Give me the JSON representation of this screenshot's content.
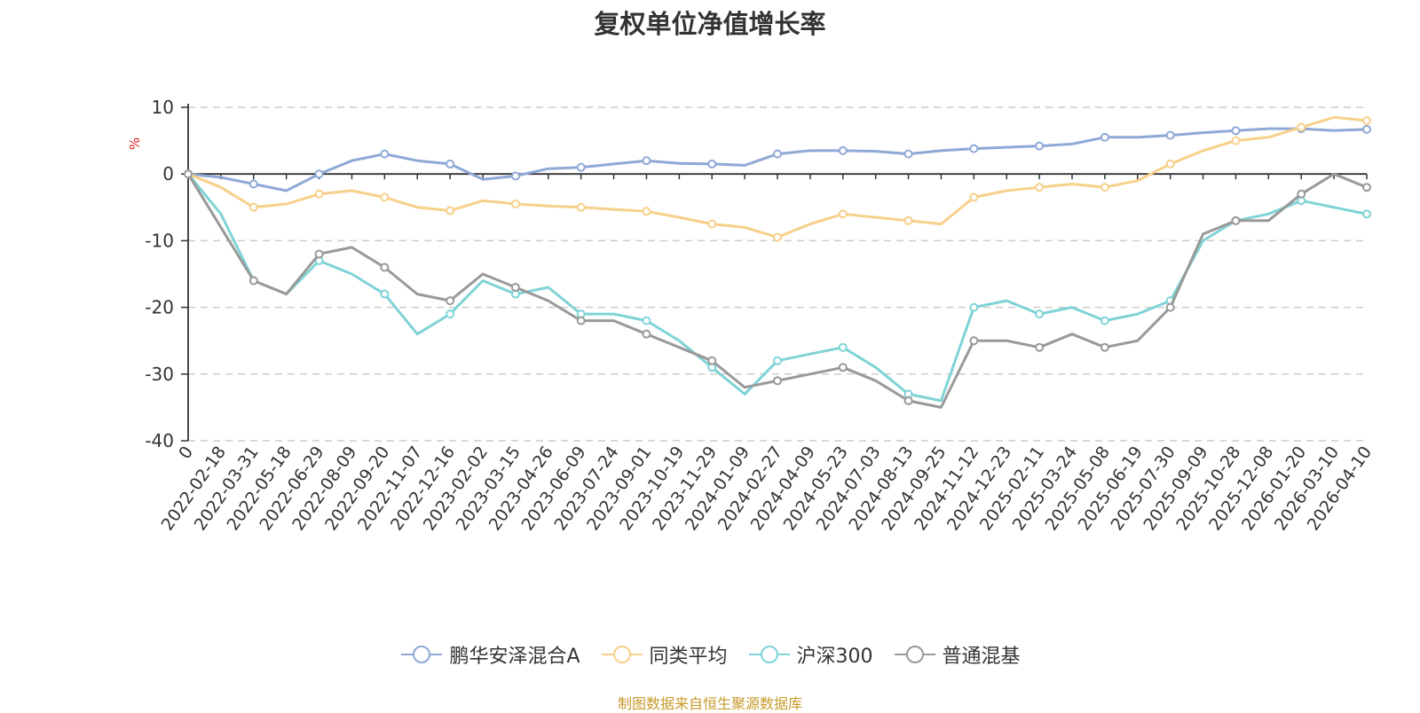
{
  "chart_data": {
    "type": "line",
    "title": "复权单位净值增长率",
    "ylabel": "%",
    "ylim": [
      -40,
      10
    ],
    "yticks": [
      10,
      0,
      -10,
      -20,
      -30,
      -40
    ],
    "grid": true,
    "legend_position": "bottom",
    "categories": [
      "0",
      "2022-02-18",
      "2022-03-31",
      "2022-05-18",
      "2022-06-29",
      "2022-08-09",
      "2022-09-20",
      "2022-11-07",
      "2022-12-16",
      "2023-02-02",
      "2023-03-15",
      "2023-04-26",
      "2023-06-09",
      "2023-07-24",
      "2023-09-01",
      "2023-10-19",
      "2023-11-29",
      "2024-01-09",
      "2024-02-27",
      "2024-04-09",
      "2024-05-23",
      "2024-07-03",
      "2024-08-13",
      "2024-09-25",
      "2024-11-12",
      "2024-12-23",
      "2025-02-11",
      "2025-03-24",
      "2025-05-08",
      "2025-06-19",
      "2025-07-30",
      "2025-09-09",
      "2025-10-28",
      "2025-12-08",
      "2026-01-20",
      "2026-03-10",
      "2026-04-10"
    ],
    "series": [
      {
        "name": "鹏华安泽混合A",
        "color": "#8fa9d6",
        "values": [
          0,
          -0.5,
          -1.5,
          -2.5,
          0,
          2,
          3,
          2,
          1.5,
          -0.8,
          -0.3,
          0.8,
          1,
          1.5,
          2,
          1.6,
          1.5,
          1.3,
          3,
          3.5,
          3.5,
          3.4,
          3,
          3.5,
          3.8,
          4,
          4.2,
          4.5,
          5.5,
          5.5,
          5.8,
          6.2,
          6.5,
          6.8,
          6.8,
          6.5,
          6.7
        ]
      },
      {
        "name": "同类平均",
        "color": "#f7d08a",
        "values": [
          0,
          -2,
          -5,
          -4.5,
          -3,
          -2.5,
          -3.5,
          -5,
          -5.5,
          -4,
          -4.5,
          -4.8,
          -5,
          -5.3,
          -5.6,
          -6.5,
          -7.5,
          -8,
          -9.5,
          -7.5,
          -6,
          -6.5,
          -7,
          -7.5,
          -3.5,
          -2.5,
          -2,
          -1.5,
          -2,
          -1,
          1.5,
          3.5,
          5,
          5.5,
          7,
          8.5,
          8
        ]
      },
      {
        "name": "沪深300",
        "color": "#7fd3d6",
        "values": [
          0,
          -6,
          -16,
          -18,
          -13,
          -15,
          -18,
          -24,
          -21,
          -16,
          -18,
          -17,
          -21,
          -21,
          -22,
          -25,
          -29,
          -33,
          -28,
          -27,
          -26,
          -29,
          -33,
          -34,
          -20,
          -19,
          -21,
          -20,
          -22,
          -21,
          -19,
          -10,
          -7,
          -6,
          -4,
          -5,
          -6
        ]
      },
      {
        "name": "普通混基",
        "color": "#999999",
        "values": [
          0,
          -8,
          -16,
          -18,
          -12,
          -11,
          -14,
          -18,
          -19,
          -15,
          -17,
          -19,
          -22,
          -22,
          -24,
          -26,
          -28,
          -32,
          -31,
          -30,
          -29,
          -31,
          -34,
          -35,
          -25,
          -25,
          -26,
          -24,
          -26,
          -25,
          -20,
          -9,
          -7,
          -7,
          -3,
          0,
          -2
        ]
      }
    ]
  },
  "source_note": "制图数据来自恒生聚源数据库"
}
